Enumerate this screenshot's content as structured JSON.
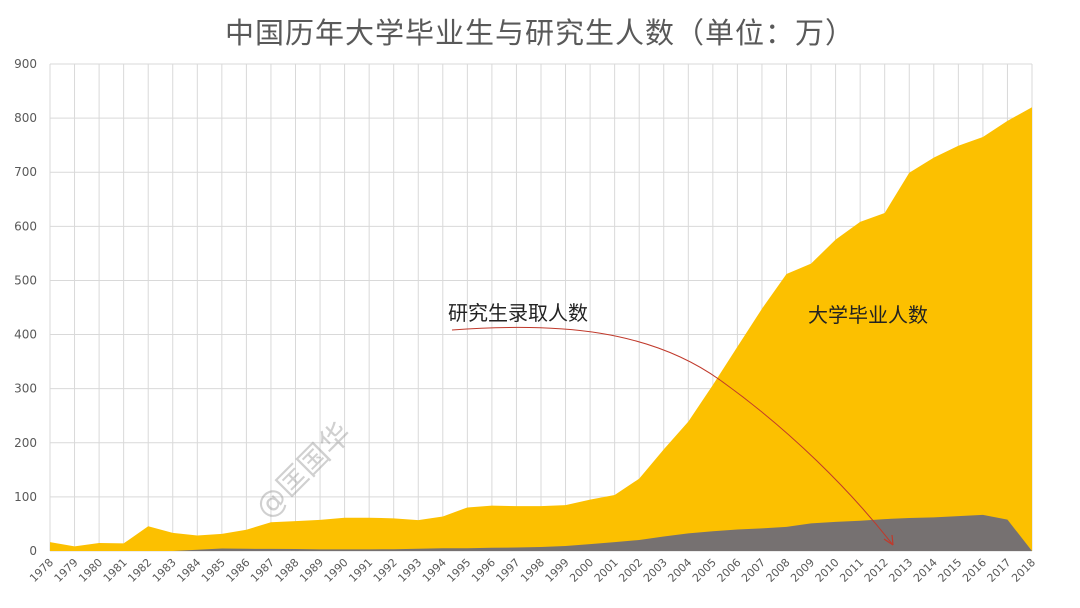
{
  "chart_data": {
    "type": "area",
    "title": "中国历年大学毕业生与研究生人数（单位：万）",
    "xlabel": "",
    "ylabel": "",
    "ylim": [
      0,
      900
    ],
    "yticks": [
      0,
      100,
      200,
      300,
      400,
      500,
      600,
      700,
      800,
      900
    ],
    "grid": true,
    "x": [
      1978,
      1979,
      1980,
      1981,
      1982,
      1983,
      1984,
      1985,
      1986,
      1987,
      1988,
      1989,
      1990,
      1991,
      1992,
      1993,
      1994,
      1995,
      1996,
      1997,
      1998,
      1999,
      2000,
      2001,
      2002,
      2003,
      2004,
      2005,
      2006,
      2007,
      2008,
      2009,
      2010,
      2011,
      2012,
      2013,
      2014,
      2015,
      2016,
      2017,
      2018
    ],
    "series": [
      {
        "name": "大学毕业人数",
        "color": "#FCC000",
        "values": [
          16.5,
          8.5,
          14.7,
          14,
          45.7,
          33.5,
          28.7,
          31.6,
          39.3,
          53.2,
          55.3,
          57.6,
          61.4,
          61.4,
          60.4,
          57.1,
          63.7,
          80.5,
          83.9,
          82.9,
          83,
          84.8,
          95,
          103.6,
          133.7,
          187.7,
          239.1,
          306.8,
          377.5,
          447.8,
          511.9,
          531.1,
          575.4,
          608.2,
          624.7,
          699,
          727,
          749,
          765,
          795,
          820
        ]
      },
      {
        "name": "研究生录取人数",
        "color": "#767171",
        "values": [
          0,
          0,
          0,
          0,
          0,
          0,
          2.3,
          4.7,
          4.1,
          3.9,
          3.6,
          2.9,
          3,
          3,
          3.3,
          4.2,
          5.1,
          5.1,
          5.9,
          6.4,
          7.3,
          9.2,
          12.8,
          16.5,
          20.3,
          26.9,
          32.6,
          36.5,
          39.8,
          41.9,
          44.6,
          51.1,
          53.8,
          56,
          58.9,
          61.1,
          62.1,
          64.5,
          66.7,
          58,
          0
        ]
      }
    ],
    "annotations": [
      {
        "text": "研究生录取人数",
        "target": "研究生录取人数"
      },
      {
        "text": "大学毕业人数",
        "target": "大学毕业人数"
      }
    ],
    "watermark": "@匡国华"
  }
}
